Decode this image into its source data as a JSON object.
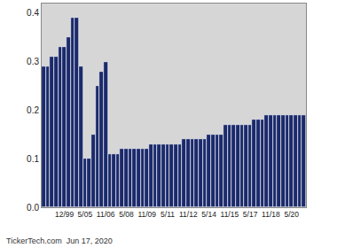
{
  "chart_data": {
    "type": "bar",
    "categories": [
      null,
      null,
      null,
      null,
      null,
      "12/99",
      null,
      null,
      null,
      null,
      "5/05",
      null,
      null,
      null,
      null,
      "11/06",
      null,
      null,
      null,
      null,
      "5/08",
      null,
      null,
      null,
      null,
      "11/09",
      null,
      null,
      null,
      null,
      "5/11",
      null,
      null,
      null,
      null,
      "11/12",
      null,
      null,
      null,
      null,
      "5/14",
      null,
      null,
      null,
      null,
      "11/15",
      null,
      null,
      null,
      null,
      "5/17",
      null,
      null,
      null,
      null,
      "11/18",
      null,
      null,
      null,
      null,
      "5/20",
      null,
      null,
      null
    ],
    "values": [
      0.29,
      0.29,
      0.31,
      0.31,
      0.33,
      0.33,
      0.35,
      0.39,
      0.39,
      0.29,
      0.1,
      0.1,
      0.15,
      0.25,
      0.28,
      0.3,
      0.11,
      0.11,
      0.11,
      0.12,
      0.12,
      0.12,
      0.12,
      0.12,
      0.12,
      0.12,
      0.13,
      0.13,
      0.13,
      0.13,
      0.13,
      0.13,
      0.13,
      0.13,
      0.14,
      0.14,
      0.14,
      0.14,
      0.14,
      0.14,
      0.15,
      0.15,
      0.15,
      0.15,
      0.17,
      0.17,
      0.17,
      0.17,
      0.17,
      0.17,
      0.17,
      0.18,
      0.18,
      0.18,
      0.19,
      0.19,
      0.19,
      0.19,
      0.19,
      0.19,
      0.19,
      0.19,
      0.19,
      0.19
    ],
    "color": "#1b2a6b",
    "ylim": [
      0,
      0.42
    ],
    "yticks": [
      {
        "value": 0,
        "label": "0.0"
      },
      0.1,
      0.2,
      0.3,
      0.4
    ],
    "annotations": [
      "TickerTech.com  Jun 17, 2020"
    ]
  }
}
